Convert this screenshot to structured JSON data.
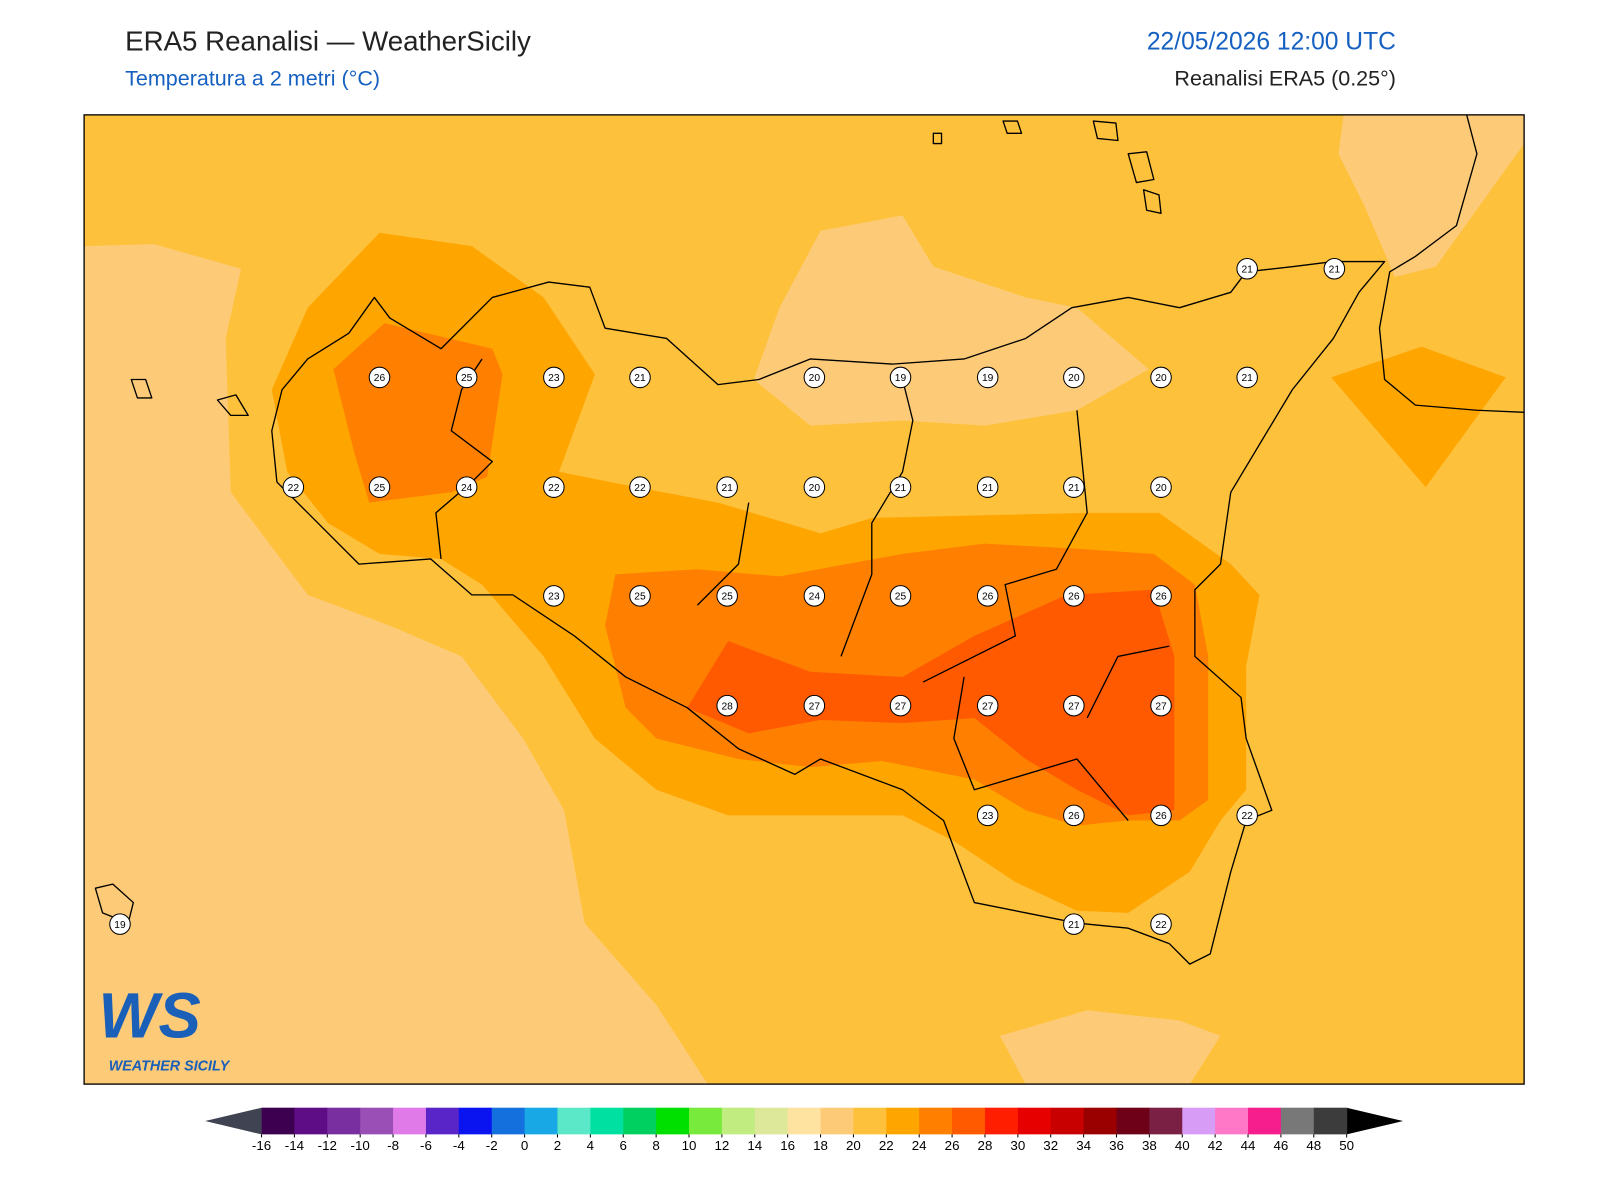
{
  "header": {
    "title": "ERA5 Reanalisi — WeatherSicily",
    "subtitle": "Temperatura a 2 metri (°C)",
    "datetime": "22/05/2026 12:00 UTC",
    "source": "Reanalisi ERA5 (0.25°)"
  },
  "stations": [
    21,
    21,
    26,
    25,
    23,
    21,
    20,
    19,
    19,
    20,
    20,
    21,
    22,
    25,
    24,
    22,
    22,
    21,
    20,
    21,
    21,
    21,
    20,
    23,
    25,
    25,
    24,
    25,
    26,
    26,
    26,
    28,
    27,
    27,
    27,
    27,
    27,
    23,
    26,
    26,
    22,
    19,
    21,
    22
  ],
  "colorbar": {
    "ticks": [
      -16,
      -14,
      -12,
      -10,
      -8,
      -6,
      -4,
      -2,
      0,
      2,
      4,
      6,
      8,
      10,
      12,
      14,
      16,
      18,
      20,
      22,
      24,
      26,
      28,
      30,
      32,
      34,
      36,
      38,
      40,
      42,
      44,
      46,
      48,
      50
    ],
    "colors": [
      "#3d0050",
      "#5e0d86",
      "#7a2fa0",
      "#9a4fb6",
      "#e07ae8",
      "#5a25c8",
      "#0a14f0",
      "#1470dc",
      "#18a8e6",
      "#5ae8c8",
      "#00e0a0",
      "#00d060",
      "#00e000",
      "#78ea3c",
      "#c0ec80",
      "#dee89a",
      "#fee3a0",
      "#fdcb78",
      "#fec13c",
      "#ffa500",
      "#ff8000",
      "#ff5a00",
      "#ff1e00",
      "#e60000",
      "#c80000",
      "#9b0000",
      "#6e0018",
      "#7a2045",
      "#d79cf5",
      "#ff78c8",
      "#f51e8c",
      "#787878",
      "#3c3c3c"
    ],
    "under_color": "#404452",
    "over_color": "#000000"
  },
  "logo": {
    "mark": "WS",
    "text": "WEATHER SICILY"
  }
}
